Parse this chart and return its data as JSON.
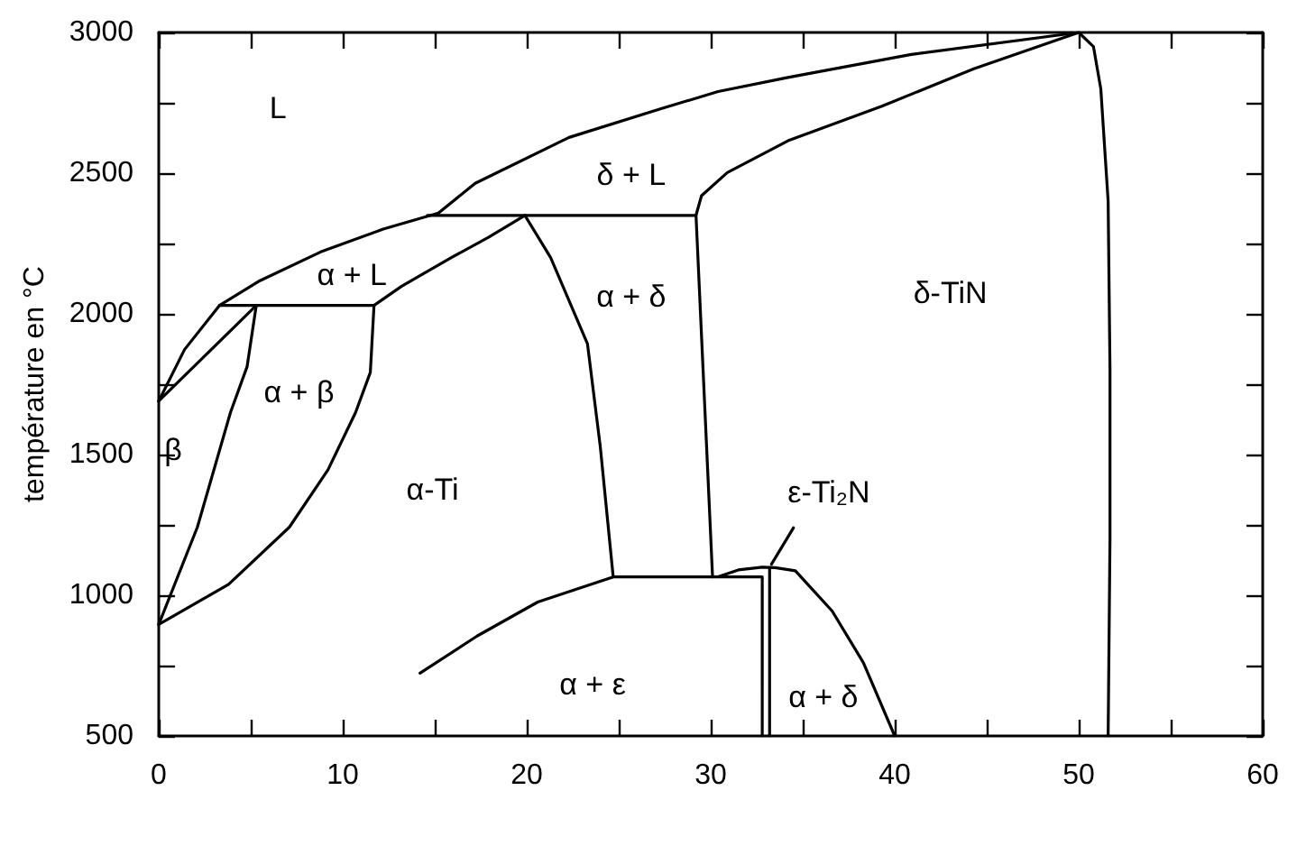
{
  "chart_data": {
    "type": "line",
    "ylabel": "température en °C",
    "xlim": [
      0,
      60
    ],
    "xticks": [
      0,
      {
        "value": 5,
        "label": null
      },
      10,
      {
        "value": 15,
        "label": null
      },
      20,
      {
        "value": 25,
        "label": null
      },
      30,
      {
        "value": 35,
        "label": null
      },
      40,
      {
        "value": 45,
        "label": null
      },
      50,
      {
        "value": 55,
        "label": null
      },
      60
    ],
    "ylim": [
      500,
      3000
    ],
    "yticks": [
      500,
      {
        "value": 750,
        "label": null
      },
      1000,
      {
        "value": 1250,
        "label": null
      },
      1500,
      {
        "value": 1750,
        "label": null
      },
      2000,
      {
        "value": 2250,
        "label": null
      },
      2500,
      {
        "value": 2750,
        "label": null
      },
      3000
    ],
    "grid": false,
    "marker": "none",
    "line_style": "solid",
    "series": [
      {
        "color": "#000000",
        "x": [
          0,
          1.4,
          3.3,
          5.5,
          8.8,
          12.2,
          15.2,
          17.2,
          22.3,
          27.3,
          30.4,
          34.2,
          40.9,
          50
        ],
        "values": [
          1690,
          1873,
          2030,
          2118,
          2220,
          2301,
          2358,
          2464,
          2627,
          2729,
          2790,
          2840,
          2922,
          3000
        ]
      },
      {
        "color": "#000000",
        "x": [
          3.3,
          11.7
        ],
        "values": [
          2030,
          2030
        ]
      },
      {
        "color": "#000000",
        "x": [
          11.7,
          13.2,
          15.9,
          17.9,
          19.9
        ],
        "values": [
          2030,
          2098,
          2200,
          2271,
          2350
        ]
      },
      {
        "color": "#000000",
        "x": [
          14.6,
          29.2
        ],
        "values": [
          2350,
          2350
        ]
      },
      {
        "color": "#000000",
        "x": [
          30.1,
          29.2,
          29.5,
          30.9,
          34.2,
          39.3,
          44.3,
          50,
          50.8,
          51.2,
          51.6,
          51.7,
          51.7,
          51.6
        ],
        "values": [
          1065,
          2350,
          2420,
          2502,
          2615,
          2738,
          2871,
          3000,
          2950,
          2800,
          2400,
          1800,
          1200,
          500
        ]
      },
      {
        "color": "#000000",
        "x": [
          0,
          5.3
        ],
        "values": [
          1690,
          2030
        ]
      },
      {
        "color": "#000000",
        "x": [
          5.3,
          4.8,
          3.9,
          2.1,
          0
        ],
        "values": [
          2030,
          1812,
          1650,
          1242,
          896
        ]
      },
      {
        "color": "#000000",
        "x": [
          11.7,
          11.5,
          10.7,
          9.2,
          7.1,
          3.8,
          0
        ],
        "values": [
          2030,
          1792,
          1650,
          1446,
          1242,
          1039,
          896
        ]
      },
      {
        "color": "#000000",
        "x": [
          19.9,
          21.3,
          23.3,
          24,
          24.7
        ],
        "values": [
          2350,
          2200,
          1894,
          1527,
          1065
        ]
      },
      {
        "color": "#000000",
        "x": [
          14.2,
          17.3,
          20.6,
          24.7,
          32.8,
          32.8
        ],
        "values": [
          723,
          855,
          976,
          1065,
          1065,
          500
        ]
      },
      {
        "color": "#000000",
        "x": [
          30.4,
          31.5,
          32.8,
          33.5,
          34.6,
          36.6,
          38.3,
          40
        ],
        "values": [
          1066,
          1090,
          1100,
          1098,
          1087,
          944,
          760,
          500
        ]
      },
      {
        "color": "#000000",
        "x": [
          33.2,
          33.2
        ],
        "values": [
          1098,
          500
        ]
      },
      {
        "color": "#000000",
        "x": [
          34.5,
          33.3
        ],
        "values": [
          1240,
          1110
        ]
      }
    ],
    "annotations": [
      "L",
      "δ + L",
      "α + L",
      "α + δ",
      "δ-TiN",
      "α + β",
      "β",
      "α-Ti",
      "ε-Ti₂N",
      "α + ε",
      "α + δ"
    ]
  }
}
